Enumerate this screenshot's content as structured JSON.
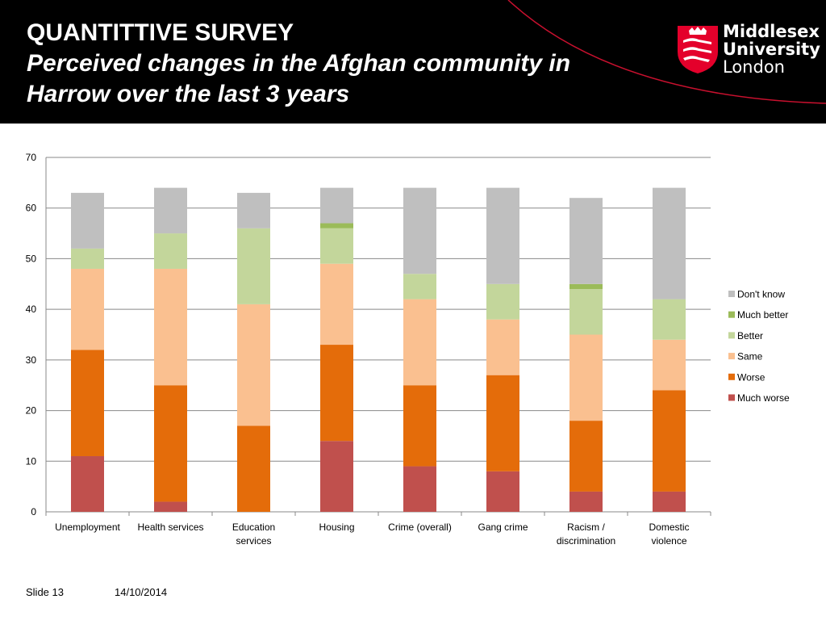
{
  "header": {
    "title": "QUANTITTIVE SURVEY",
    "subtitle": "Perceived changes in the Afghan community in Harrow over the last 3 years",
    "logo_line1": "Middlesex",
    "logo_line2": "University",
    "logo_line3": "London"
  },
  "footer": {
    "slide": "Slide 13",
    "date": "14/10/2014"
  },
  "colors": {
    "header_bg": "#000000",
    "accent_arc": "#c8102e",
    "logo_shield": "#e4002b"
  },
  "chart_data": {
    "type": "bar",
    "stacked": true,
    "categories": [
      [
        "Unemployment"
      ],
      [
        "Health services"
      ],
      [
        "Education",
        "services"
      ],
      [
        "Housing"
      ],
      [
        "Crime (overall)"
      ],
      [
        "Gang crime"
      ],
      [
        "Racism /",
        "discrimination"
      ],
      [
        "Domestic",
        "violence"
      ]
    ],
    "series": [
      {
        "name": "Much worse",
        "color": "#c0504d",
        "values": [
          11,
          2,
          0,
          14,
          9,
          8,
          4,
          4
        ]
      },
      {
        "name": "Worse",
        "color": "#e46c0a",
        "values": [
          21,
          23,
          17,
          19,
          16,
          19,
          14,
          20
        ]
      },
      {
        "name": "Same",
        "color": "#fac090",
        "values": [
          16,
          23,
          24,
          16,
          17,
          11,
          17,
          10
        ]
      },
      {
        "name": "Better",
        "color": "#c3d69b",
        "values": [
          4,
          7,
          15,
          7,
          5,
          7,
          9,
          8
        ]
      },
      {
        "name": "Much better",
        "color": "#9bbb59",
        "values": [
          0,
          0,
          0,
          1,
          0,
          0,
          1,
          0
        ]
      },
      {
        "name": "Don't know",
        "color": "#bfbfbf",
        "values": [
          11,
          9,
          7,
          7,
          17,
          19,
          17,
          22
        ]
      }
    ],
    "ylim": [
      0,
      70
    ],
    "yticks": [
      0,
      10,
      20,
      30,
      40,
      50,
      60,
      70
    ],
    "grid": true,
    "legend_position": "right"
  }
}
